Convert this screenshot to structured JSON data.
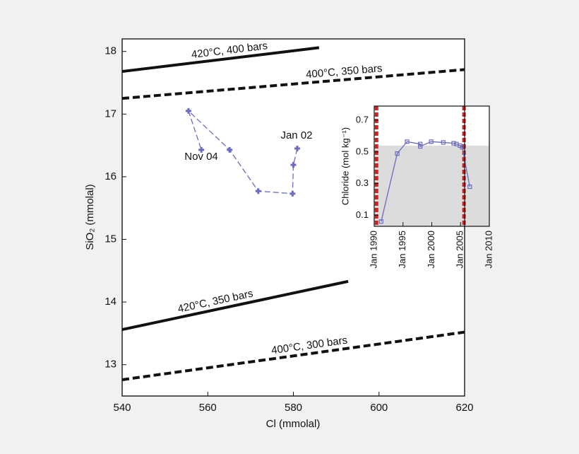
{
  "chart_data": [
    {
      "type": "line",
      "xlabel": "Cl (mmolal)",
      "ylabel": "SiO₂ (mmolal)",
      "xlim": [
        540,
        620
      ],
      "xticks": [
        540,
        560,
        580,
        600,
        620
      ],
      "ylim": [
        12.5,
        18.2
      ],
      "yticks": [
        13,
        14,
        15,
        16,
        17,
        18
      ],
      "series": [
        {
          "name": "420°C, 400 bars",
          "color": "#111111",
          "dashed": false,
          "x": [
            540,
            586
          ],
          "values": [
            17.68,
            18.06
          ]
        },
        {
          "name": "400°C, 350 bars",
          "color": "#111111",
          "dashed": true,
          "x": [
            540,
            620
          ],
          "values": [
            17.25,
            17.71
          ]
        },
        {
          "name": "420°C, 350 bars",
          "color": "#111111",
          "dashed": false,
          "x": [
            540,
            592.8
          ],
          "values": [
            13.56,
            14.33
          ]
        },
        {
          "name": "400°C, 300 bars",
          "color": "#111111",
          "dashed": true,
          "x": [
            540,
            620
          ],
          "values": [
            12.76,
            13.52
          ]
        },
        {
          "color": "#6b6bbf",
          "markers": true,
          "x": [
            580.9,
            580,
            579.8,
            571.8,
            565.1,
            555.5,
            558.5
          ],
          "values": [
            16.45,
            16.19,
            15.73,
            15.77,
            16.43,
            17.05,
            16.43
          ]
        }
      ],
      "annotations": [
        "Nov 04",
        "Jan 02"
      ]
    },
    {
      "type": "line",
      "ylabel": "Chloride (mol kg⁻¹)",
      "xlim": [
        1990,
        2010
      ],
      "xticks": [
        {
          "value": 1990,
          "label": "Jan 1990"
        },
        {
          "value": 1995,
          "label": "Jan 1995"
        },
        {
          "value": 2000,
          "label": "Jan 2000"
        },
        {
          "value": 2005,
          "label": "Jan 2005"
        },
        {
          "value": 2010,
          "label": "Jan 2010"
        }
      ],
      "ylim": [
        0.03,
        0.79
      ],
      "yticks": [
        0.1,
        0.3,
        0.5,
        0.7
      ],
      "shade_below": 0.54,
      "shade_color": "#dcdcdc",
      "vlines": [
        1990.4,
        2005.6
      ],
      "vline_color": "#d62020",
      "series": [
        {
          "color": "#6b6bbf",
          "markers": true,
          "x": [
            1991.2,
            1994.0,
            1995.7,
            1998.0,
            1998.0,
            1999.9,
            2002.0,
            2003.8,
            2004.3,
            2004.9,
            2005.3,
            2006.6
          ],
          "values": [
            0.06,
            0.49,
            0.565,
            0.55,
            0.535,
            0.565,
            0.56,
            0.555,
            0.55,
            0.54,
            0.53,
            0.28
          ]
        }
      ]
    }
  ]
}
